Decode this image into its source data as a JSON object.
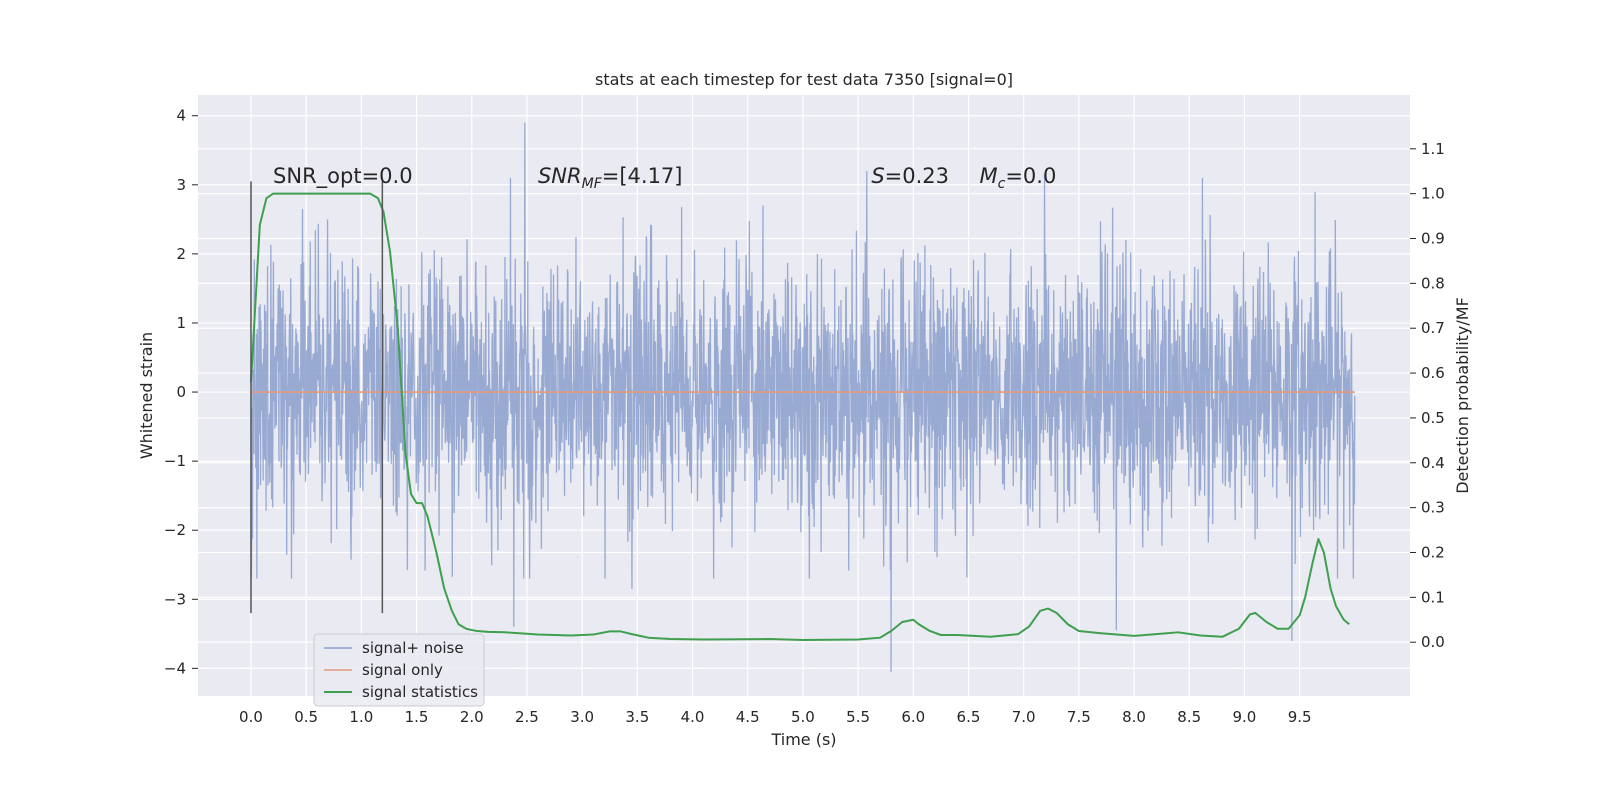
{
  "chart_data": {
    "type": "line",
    "title": "stats at each timestep for test data 7350 [signal=0]",
    "xlabel": "Time (s)",
    "ylabel": "Whitened strain",
    "y2label": "Detection probability/MF",
    "xlim": [
      -0.48,
      10.5
    ],
    "ylim": [
      -4.4,
      4.3
    ],
    "y2lim": [
      -0.12,
      1.22
    ],
    "xticks": [
      0.0,
      0.5,
      1.0,
      1.5,
      2.0,
      2.5,
      3.0,
      3.5,
      4.0,
      4.5,
      5.0,
      5.5,
      6.0,
      6.5,
      7.0,
      7.5,
      8.0,
      8.5,
      9.0,
      9.5
    ],
    "yticks": [
      -4,
      -3,
      -2,
      -1,
      0,
      1,
      2,
      3,
      4
    ],
    "y2ticks": [
      0.0,
      0.1,
      0.2,
      0.3,
      0.4,
      0.5,
      0.6,
      0.7,
      0.8,
      0.9,
      1.0,
      1.1
    ],
    "grid": true,
    "legend_position": "lower-left",
    "legend": [
      {
        "label": "signal+ noise",
        "color": "#8a9fcd"
      },
      {
        "label": "signal only",
        "color": "#e39a7c"
      },
      {
        "label": "signal statistics",
        "color": "#3f9f4f"
      }
    ],
    "annotations": [
      {
        "label": "SNR_opt=0.0",
        "x": 0.2,
        "y": 3.0
      },
      {
        "base": "SNR",
        "sub": "MF",
        "suffix": "=[4.17]",
        "x": 2.6,
        "y": 3.0
      },
      {
        "base": "S",
        "sub": "",
        "suffix": "=0.23",
        "x": 5.62,
        "y": 3.0
      },
      {
        "base": "M",
        "sub": "c",
        "suffix": "=0.0",
        "x": 6.6,
        "y": 3.0
      }
    ],
    "vlines": [
      0.0,
      1.19
    ],
    "vline_range": [
      -3.2,
      3.05
    ],
    "series": [
      {
        "name": "signal+ noise",
        "color": "#8a9fcd",
        "x_range": [
          0.0,
          10.0
        ],
        "typical_amplitude": [
          -2.0,
          2.0
        ],
        "notable_peaks": [
          {
            "x": 2.48,
            "y": 3.9
          },
          {
            "x": 2.35,
            "y": 3.1
          },
          {
            "x": 5.58,
            "y": 3.2
          },
          {
            "x": 7.19,
            "y": 3.15
          },
          {
            "x": 8.62,
            "y": 3.1
          },
          {
            "x": 9.64,
            "y": 2.9
          },
          {
            "x": 2.38,
            "y": -3.4
          },
          {
            "x": 5.8,
            "y": -4.05
          },
          {
            "x": 7.84,
            "y": -3.45
          },
          {
            "x": 9.43,
            "y": -3.6
          },
          {
            "x": 3.45,
            "y": -2.85
          }
        ]
      },
      {
        "name": "signal only",
        "color": "#e39a7c",
        "x": [
          0.0,
          10.0
        ],
        "y": [
          0.0,
          0.0
        ]
      },
      {
        "name": "signal statistics",
        "color": "#3f9f4f",
        "axis": "right",
        "x": [
          0.0,
          0.08,
          0.14,
          0.2,
          0.3,
          0.5,
          0.7,
          0.9,
          1.0,
          1.08,
          1.15,
          1.2,
          1.26,
          1.33,
          1.4,
          1.45,
          1.5,
          1.55,
          1.6,
          1.68,
          1.75,
          1.82,
          1.88,
          1.95,
          2.0,
          2.05,
          2.15,
          2.3,
          2.6,
          2.9,
          3.1,
          3.25,
          3.35,
          3.45,
          3.6,
          3.8,
          4.1,
          4.7,
          5.0,
          5.5,
          5.7,
          5.8,
          5.9,
          6.0,
          6.05,
          6.15,
          6.25,
          6.4,
          6.7,
          6.95,
          7.05,
          7.15,
          7.22,
          7.3,
          7.4,
          7.5,
          7.7,
          8.0,
          8.2,
          8.4,
          8.6,
          8.8,
          8.95,
          9.05,
          9.1,
          9.2,
          9.3,
          9.4,
          9.5,
          9.55,
          9.62,
          9.67,
          9.72,
          9.78,
          9.83,
          9.9,
          9.95
        ],
        "y": [
          0.58,
          0.93,
          0.99,
          1.0,
          1.0,
          1.0,
          1.0,
          1.0,
          1.0,
          1.0,
          0.99,
          0.96,
          0.87,
          0.7,
          0.42,
          0.33,
          0.31,
          0.31,
          0.28,
          0.2,
          0.12,
          0.07,
          0.04,
          0.03,
          0.027,
          0.025,
          0.023,
          0.022,
          0.017,
          0.015,
          0.017,
          0.024,
          0.024,
          0.018,
          0.01,
          0.007,
          0.006,
          0.007,
          0.005,
          0.006,
          0.01,
          0.025,
          0.045,
          0.05,
          0.04,
          0.025,
          0.016,
          0.016,
          0.012,
          0.018,
          0.035,
          0.07,
          0.075,
          0.065,
          0.04,
          0.025,
          0.02,
          0.014,
          0.018,
          0.022,
          0.015,
          0.012,
          0.03,
          0.062,
          0.065,
          0.045,
          0.03,
          0.03,
          0.06,
          0.1,
          0.18,
          0.23,
          0.2,
          0.12,
          0.08,
          0.05,
          0.04
        ]
      }
    ]
  }
}
